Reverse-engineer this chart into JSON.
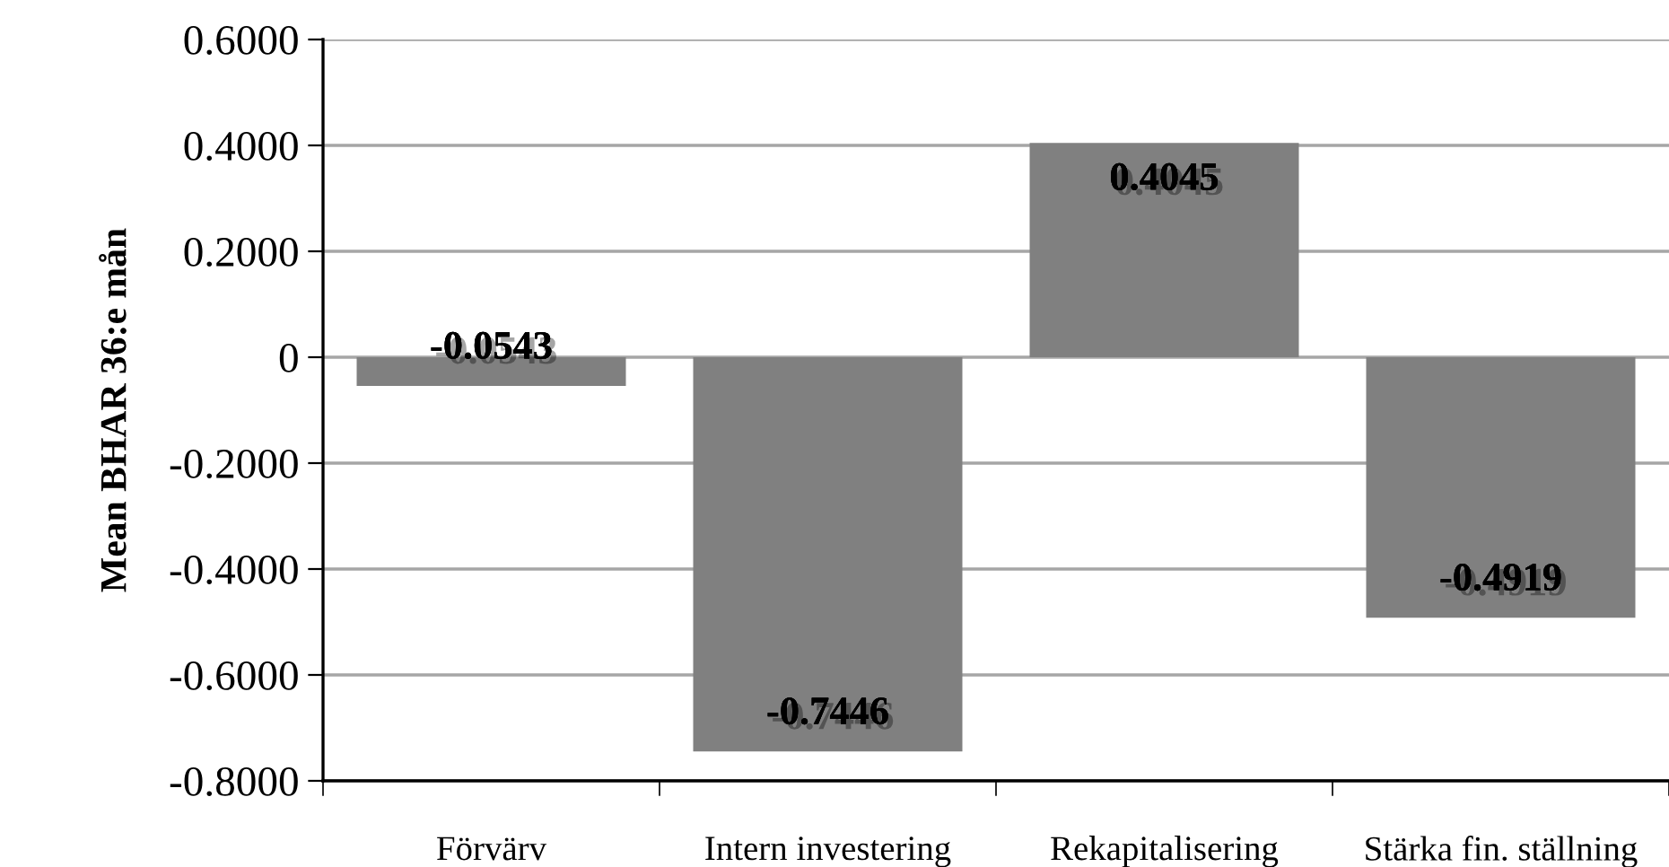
{
  "chart_data": {
    "type": "bar",
    "ylabel": "Mean BHAR 36:e mån",
    "categories": [
      "Förvärv",
      "Intern investering",
      "Rekapitalisering",
      "Stärka fin. ställning"
    ],
    "values": [
      -0.0543,
      -0.7446,
      0.4045,
      -0.4919
    ],
    "color": "#808080",
    "data_labels": true,
    "ylim": [
      -0.8,
      0.6
    ],
    "yticks": [
      {
        "value": -0.8,
        "label": "-0.8000"
      },
      {
        "value": -0.6,
        "label": "-0.6000"
      },
      {
        "value": -0.4,
        "label": "-0.4000"
      },
      {
        "value": -0.2,
        "label": "-0.2000"
      },
      0,
      {
        "value": 0.2,
        "label": "0.2000"
      },
      {
        "value": 0.4,
        "label": "0.4000"
      },
      {
        "value": 0.6,
        "label": "0.6000"
      }
    ],
    "grid": "y",
    "legend": false
  }
}
